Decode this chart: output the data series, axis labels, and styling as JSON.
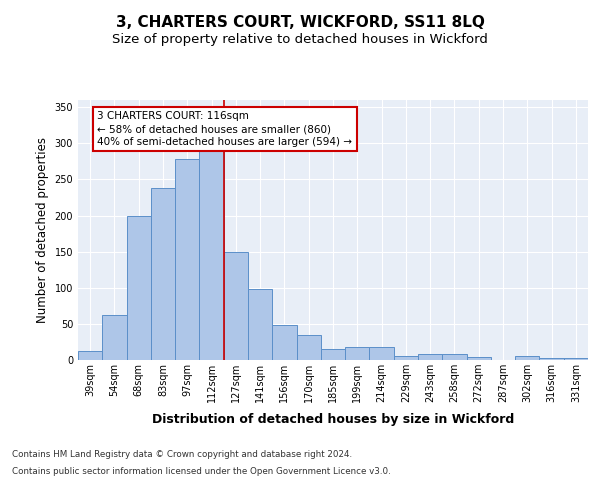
{
  "title": "3, CHARTERS COURT, WICKFORD, SS11 8LQ",
  "subtitle": "Size of property relative to detached houses in Wickford",
  "xlabel": "Distribution of detached houses by size in Wickford",
  "ylabel": "Number of detached properties",
  "categories": [
    "39sqm",
    "54sqm",
    "68sqm",
    "83sqm",
    "97sqm",
    "112sqm",
    "127sqm",
    "141sqm",
    "156sqm",
    "170sqm",
    "185sqm",
    "199sqm",
    "214sqm",
    "229sqm",
    "243sqm",
    "258sqm",
    "272sqm",
    "287sqm",
    "302sqm",
    "316sqm",
    "331sqm"
  ],
  "values": [
    12,
    63,
    200,
    238,
    278,
    291,
    150,
    98,
    48,
    35,
    15,
    18,
    18,
    5,
    9,
    9,
    4,
    0,
    5,
    3,
    3
  ],
  "bar_color": "#aec6e8",
  "bar_edge_color": "#5b8fc9",
  "property_line_x": 5.5,
  "property_label": "3 CHARTERS COURT: 116sqm",
  "annotation_line1": "← 58% of detached houses are smaller (860)",
  "annotation_line2": "40% of semi-detached houses are larger (594) →",
  "annotation_box_color": "#ffffff",
  "annotation_box_edge": "#cc0000",
  "vline_color": "#cc0000",
  "ylim": [
    0,
    360
  ],
  "yticks": [
    0,
    50,
    100,
    150,
    200,
    250,
    300,
    350
  ],
  "footer_line1": "Contains HM Land Registry data © Crown copyright and database right 2024.",
  "footer_line2": "Contains public sector information licensed under the Open Government Licence v3.0.",
  "bg_color": "#e8eef7",
  "title_fontsize": 11,
  "subtitle_fontsize": 9.5,
  "tick_fontsize": 7,
  "ylabel_fontsize": 8.5,
  "xlabel_fontsize": 9,
  "annotation_fontsize": 7.5
}
